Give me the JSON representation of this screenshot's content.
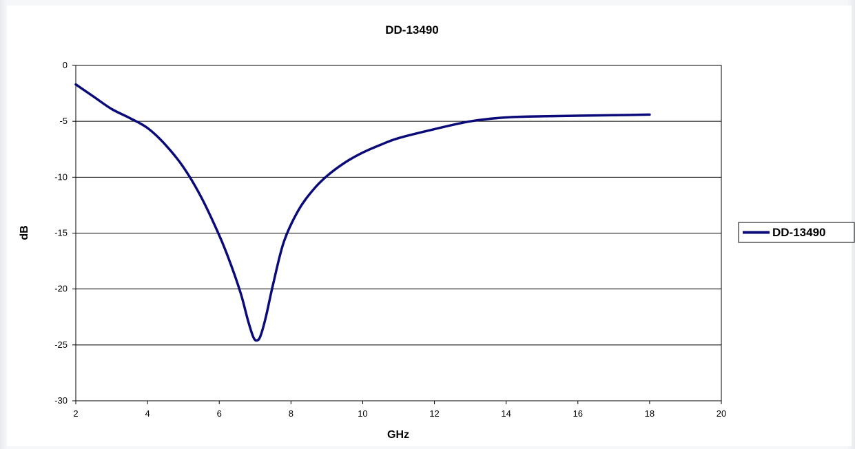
{
  "chart_data": {
    "type": "line",
    "title": "DD-13490",
    "xlabel": "GHz",
    "ylabel": "dB",
    "xlim": [
      2,
      20
    ],
    "ylim": [
      -30,
      0
    ],
    "x_ticks": [
      2,
      4,
      6,
      8,
      10,
      12,
      14,
      16,
      18,
      20
    ],
    "y_ticks": [
      0,
      -5,
      -10,
      -15,
      -20,
      -25,
      -30
    ],
    "grid": "horizontal",
    "legend_position": "right",
    "series": [
      {
        "name": "DD-13490",
        "color": "#0a0a78",
        "x": [
          2.0,
          2.5,
          3.0,
          3.5,
          4.0,
          4.5,
          5.0,
          5.5,
          6.0,
          6.3,
          6.6,
          6.8,
          6.95,
          7.05,
          7.15,
          7.3,
          7.5,
          7.8,
          8.2,
          8.6,
          9.0,
          9.5,
          10.0,
          10.5,
          11.0,
          12.0,
          13.0,
          14.0,
          15.0,
          16.0,
          17.0,
          18.0
        ],
        "y": [
          -1.7,
          -2.8,
          -3.9,
          -4.7,
          -5.6,
          -7.1,
          -9.1,
          -11.8,
          -15.2,
          -17.6,
          -20.4,
          -22.8,
          -24.3,
          -24.6,
          -24.2,
          -22.5,
          -19.6,
          -15.8,
          -13.0,
          -11.2,
          -9.9,
          -8.7,
          -7.8,
          -7.1,
          -6.5,
          -5.7,
          -5.0,
          -4.65,
          -4.55,
          -4.5,
          -4.45,
          -4.4
        ]
      }
    ]
  }
}
